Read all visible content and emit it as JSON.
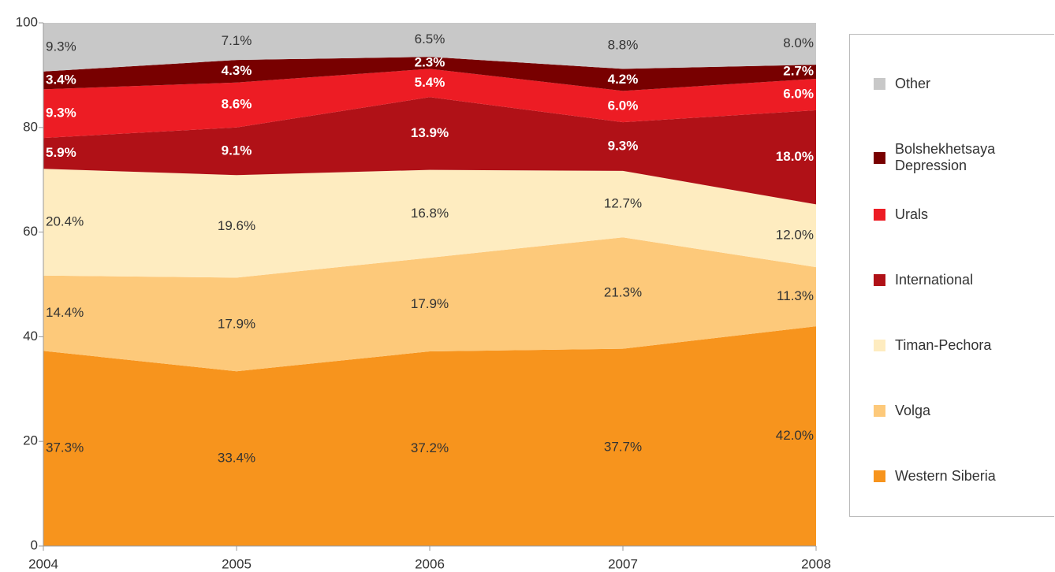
{
  "chart_data": {
    "type": "stacked_area",
    "x": [
      2004,
      2005,
      2006,
      2007,
      2008
    ],
    "xlim": [
      2004,
      2008
    ],
    "xticks": [
      2004,
      2005,
      2006,
      2007,
      2008
    ],
    "ylim": [
      0,
      100
    ],
    "yticks": [
      0,
      20,
      40,
      60,
      80,
      100
    ],
    "series": [
      {
        "name": "Western Siberia",
        "color": "#f7941d",
        "values": [
          37.3,
          33.4,
          37.2,
          37.7,
          42.0
        ],
        "value_labels": [
          "37.3%",
          "33.4%",
          "37.2%",
          "37.7%",
          "42.0%"
        ]
      },
      {
        "name": "Volga",
        "color": "#fdc97a",
        "values": [
          14.4,
          17.9,
          17.9,
          21.3,
          11.3
        ],
        "value_labels": [
          "14.4%",
          "17.9%",
          "17.9%",
          "21.3%",
          "11.3%"
        ]
      },
      {
        "name": "Timan-Pechora",
        "color": "#feecc0",
        "values": [
          20.4,
          19.6,
          16.8,
          12.7,
          12.0
        ],
        "value_labels": [
          "20.4%",
          "19.6%",
          "16.8%",
          "12.7%",
          "12.0%"
        ]
      },
      {
        "name": "International",
        "color": "#b01117",
        "values": [
          5.9,
          9.1,
          13.9,
          9.3,
          18.0
        ],
        "value_labels": [
          "5.9%",
          "9.1%",
          "13.9%",
          "9.3%",
          "18.0%"
        ]
      },
      {
        "name": "Urals",
        "color": "#ed1c24",
        "values": [
          9.3,
          8.6,
          5.4,
          6.0,
          6.0
        ],
        "value_labels": [
          "9.3%",
          "8.6%",
          "5.4%",
          "6.0%",
          "6.0%"
        ]
      },
      {
        "name": "Bolshekhetsaya Depression",
        "color": "#780000",
        "values": [
          3.4,
          4.3,
          2.3,
          4.2,
          2.7
        ],
        "value_labels": [
          "3.4%",
          "4.3%",
          "2.3%",
          "4.2%",
          "2.7%"
        ]
      },
      {
        "name": "Other",
        "color": "#c8c8c8",
        "values": [
          9.3,
          7.1,
          6.5,
          8.8,
          8.0
        ],
        "value_labels": [
          "9.3%",
          "7.1%",
          "6.5%",
          "8.8%",
          "8.0%"
        ]
      }
    ],
    "legend": "right"
  }
}
